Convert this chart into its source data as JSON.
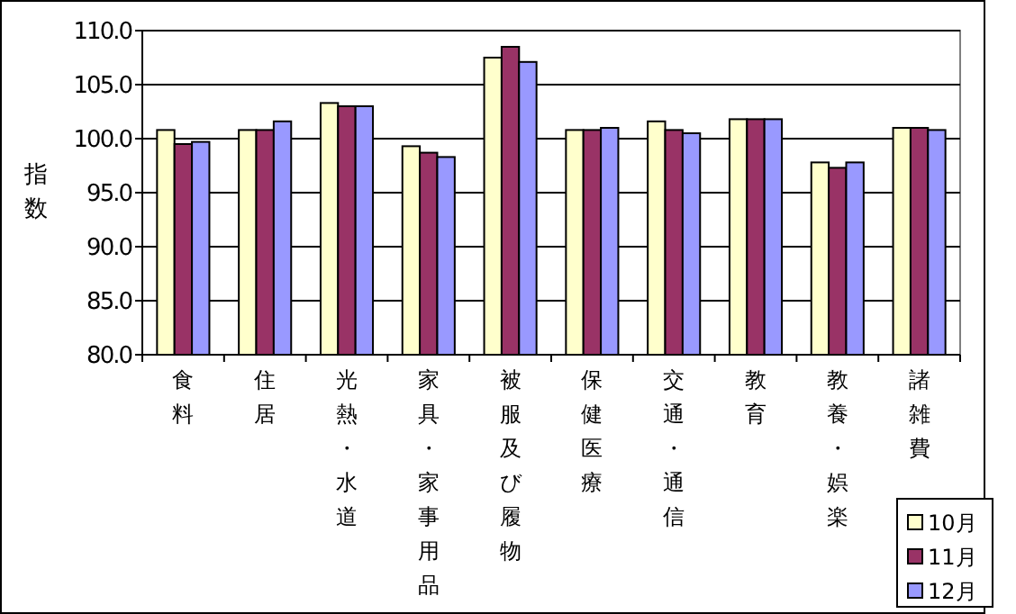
{
  "chart_data": {
    "type": "bar",
    "ylabel": "指数",
    "categories": [
      "食料",
      "住居",
      "光熱・水道",
      "家具・家事用品",
      "被服及び履物",
      "保健医療",
      "交通・通信",
      "教育",
      "教養・娯楽",
      "諸雑費"
    ],
    "series": [
      {
        "name": "10月",
        "color": "#ffffcc",
        "values": [
          100.8,
          100.8,
          103.3,
          99.3,
          107.5,
          100.8,
          101.6,
          101.8,
          97.8,
          101.0
        ]
      },
      {
        "name": "11月",
        "color": "#993366",
        "values": [
          99.5,
          100.8,
          103.0,
          98.7,
          108.5,
          100.8,
          100.8,
          101.8,
          97.3,
          101.0
        ]
      },
      {
        "name": "12月",
        "color": "#9999ff",
        "values": [
          99.7,
          101.6,
          103.0,
          98.3,
          107.1,
          101.0,
          100.5,
          101.8,
          97.8,
          100.8
        ]
      }
    ],
    "ylim": [
      80,
      110
    ],
    "yticks": [
      {
        "value": 80,
        "label": "80.0"
      },
      {
        "value": 85,
        "label": "85.0"
      },
      {
        "value": 90,
        "label": "90.0"
      },
      {
        "value": 95,
        "label": "95.0"
      },
      {
        "value": 100,
        "label": "100.0"
      },
      {
        "value": 105,
        "label": "105.0"
      },
      {
        "value": 110,
        "label": "110.0"
      }
    ],
    "grid": "y",
    "legend": "bottom right"
  }
}
